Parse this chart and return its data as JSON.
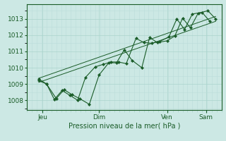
{
  "background_color": "#cce8e4",
  "grid_major_color": "#aad4cc",
  "grid_minor_color": "#bbddda",
  "line_color": "#1a5c28",
  "x_tick_positions": [
    0.08,
    0.37,
    0.72,
    0.92
  ],
  "x_tick_labels": [
    "Jeu",
    "Dim",
    "Ven",
    "Sam"
  ],
  "xlabel": "Pression niveau de la mer( hPa )",
  "ylim": [
    1007.4,
    1013.9
  ],
  "yticks": [
    1008,
    1009,
    1010,
    1011,
    1012,
    1013
  ],
  "xlim": [
    0.0,
    1.0
  ],
  "line1_x": [
    0.06,
    0.1,
    0.15,
    0.19,
    0.23,
    0.27,
    0.32,
    0.37,
    0.42,
    0.46,
    0.5,
    0.54,
    0.59,
    0.63,
    0.67,
    0.72,
    0.76,
    0.8,
    0.84,
    0.88,
    0.93,
    0.97
  ],
  "line1_y": [
    1009.3,
    1009.0,
    1008.1,
    1008.65,
    1008.35,
    1008.1,
    1007.75,
    1009.55,
    1010.3,
    1010.3,
    1011.1,
    1010.45,
    1010.0,
    1011.85,
    1011.55,
    1011.65,
    1011.95,
    1013.05,
    1012.45,
    1013.35,
    1013.5,
    1013.0
  ],
  "line2_x": [
    0.06,
    0.1,
    0.14,
    0.18,
    0.22,
    0.26,
    0.3,
    0.35,
    0.39,
    0.43,
    0.47,
    0.51,
    0.56,
    0.6,
    0.64,
    0.68,
    0.73,
    0.77,
    0.81,
    0.85,
    0.9,
    0.94
  ],
  "line2_y": [
    1009.2,
    1009.0,
    1008.05,
    1008.6,
    1008.3,
    1008.0,
    1009.4,
    1010.05,
    1010.2,
    1010.35,
    1010.35,
    1010.25,
    1011.8,
    1011.55,
    1011.5,
    1011.6,
    1011.9,
    1013.0,
    1012.35,
    1013.3,
    1013.4,
    1012.85
  ],
  "trend1_x": [
    0.06,
    0.97
  ],
  "trend1_y": [
    1009.1,
    1012.85
  ],
  "trend2_x": [
    0.06,
    0.97
  ],
  "trend2_y": [
    1009.35,
    1013.15
  ]
}
